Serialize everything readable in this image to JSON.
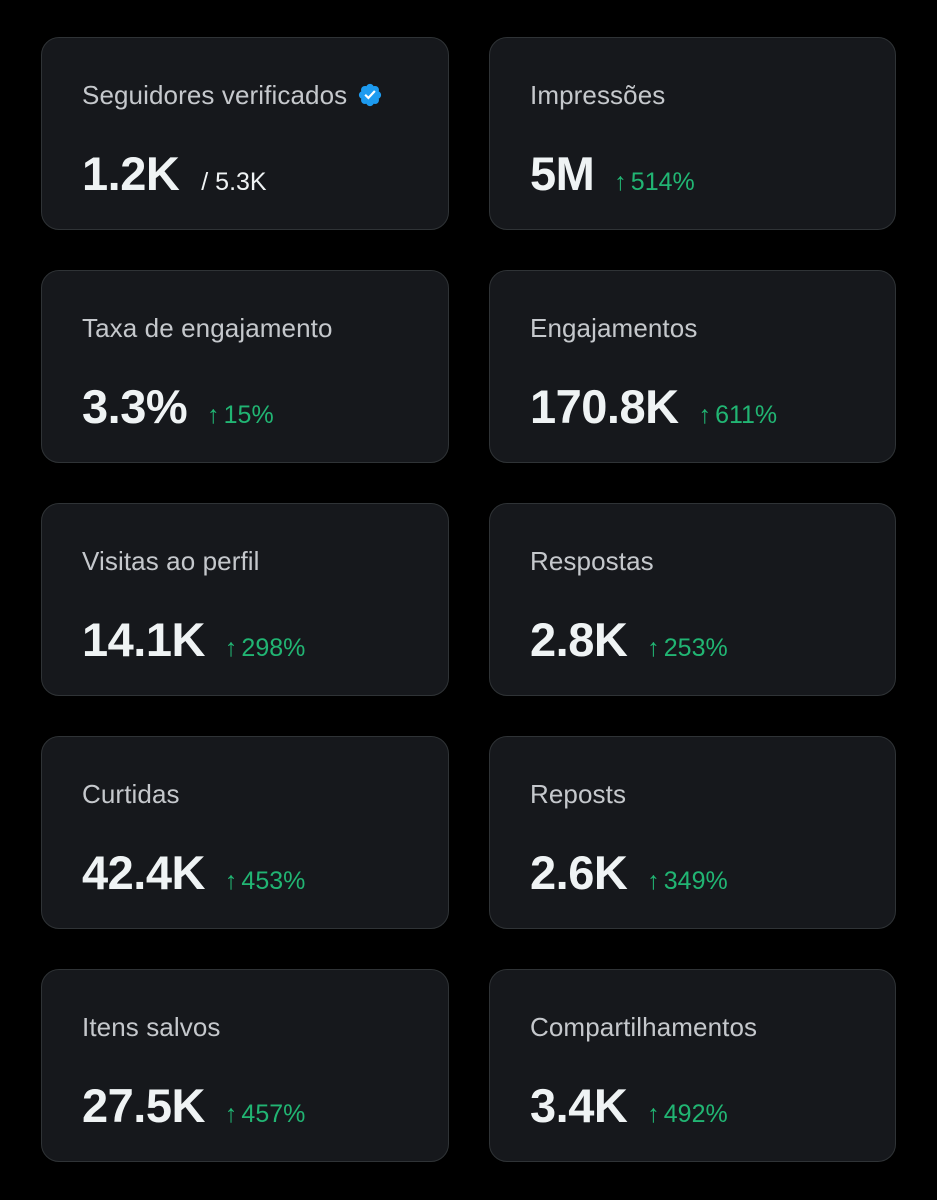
{
  "colors": {
    "background": "#000000",
    "card": "#16181c",
    "card_border": "#2f3336",
    "label": "#c5c8cc",
    "value": "#eff3f4",
    "positive": "#21b573",
    "verified_badge": "#1d9bf0"
  },
  "metrics": [
    {
      "label": "Seguidores verificados",
      "value": "1.2K",
      "secondary": "/ 5.3K",
      "badge_icon": "verified-badge-icon"
    },
    {
      "label": "Impressões",
      "value": "5M",
      "arrow": "↑",
      "change": "514%"
    },
    {
      "label": "Taxa de engajamento",
      "value": "3.3%",
      "arrow": "↑",
      "change": "15%"
    },
    {
      "label": "Engajamentos",
      "value": "170.8K",
      "arrow": "↑",
      "change": "611%"
    },
    {
      "label": "Visitas ao perfil",
      "value": "14.1K",
      "arrow": "↑",
      "change": "298%"
    },
    {
      "label": "Respostas",
      "value": "2.8K",
      "arrow": "↑",
      "change": "253%"
    },
    {
      "label": "Curtidas",
      "value": "42.4K",
      "arrow": "↑",
      "change": "453%"
    },
    {
      "label": "Reposts",
      "value": "2.6K",
      "arrow": "↑",
      "change": "349%"
    },
    {
      "label": "Itens salvos",
      "value": "27.5K",
      "arrow": "↑",
      "change": "457%"
    },
    {
      "label": "Compartilhamentos",
      "value": "3.4K",
      "arrow": "↑",
      "change": "492%"
    }
  ]
}
